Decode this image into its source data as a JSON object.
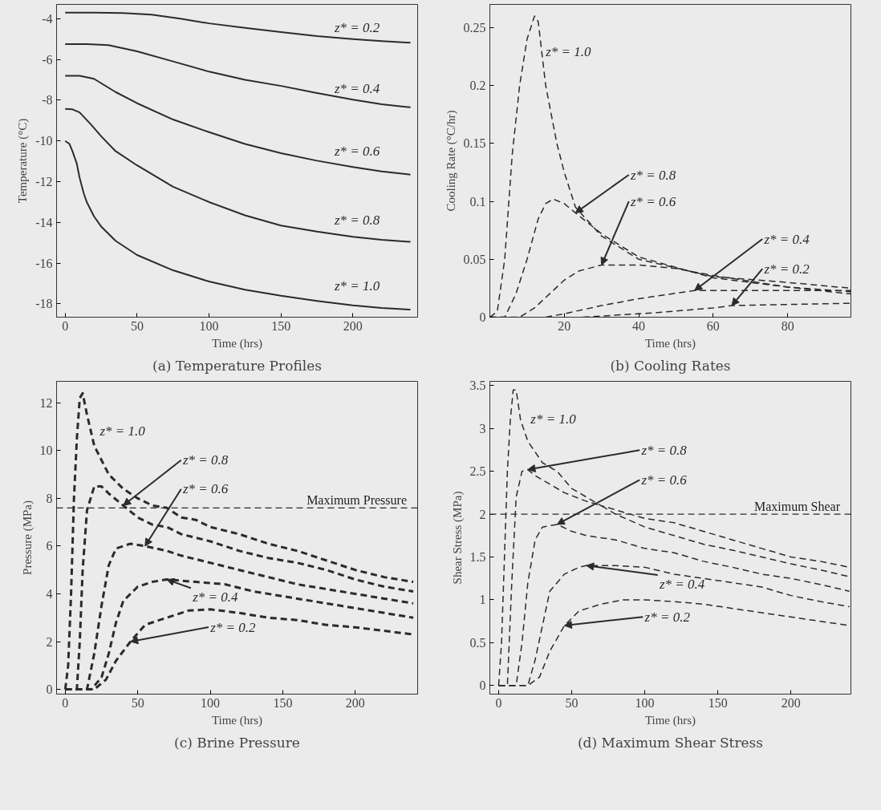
{
  "chart_data": [
    {
      "type": "line",
      "title": "(a) Temperature Profiles",
      "xlabel": "Time (hrs)",
      "ylabel": "Temperature (°C)",
      "xlim": [
        -6,
        245
      ],
      "ylim": [
        -18.65,
        -3.3
      ],
      "xticks": [
        0,
        50,
        100,
        150,
        200
      ],
      "yticks": [
        -18,
        -16,
        -14,
        -12,
        -10,
        -8,
        -6,
        -4
      ],
      "line_style": "solid",
      "grid": false,
      "series": [
        {
          "name": "z* = 0.2",
          "color": "#2b2b2b",
          "x": [
            0,
            20,
            40,
            60,
            80,
            100,
            125,
            150,
            175,
            200,
            220,
            240
          ],
          "values": [
            -3.7,
            -3.7,
            -3.72,
            -3.8,
            -4.0,
            -4.23,
            -4.45,
            -4.66,
            -4.85,
            -5.0,
            -5.1,
            -5.18
          ]
        },
        {
          "name": "z* = 0.4",
          "color": "#2b2b2b",
          "x": [
            0,
            15,
            30,
            50,
            75,
            100,
            125,
            150,
            175,
            200,
            220,
            240
          ],
          "values": [
            -5.25,
            -5.25,
            -5.3,
            -5.6,
            -6.1,
            -6.6,
            -7.0,
            -7.3,
            -7.65,
            -7.97,
            -8.2,
            -8.35
          ]
        },
        {
          "name": "z* = 0.6",
          "color": "#2b2b2b",
          "x": [
            0,
            10,
            20,
            35,
            50,
            75,
            100,
            125,
            150,
            175,
            200,
            220,
            240
          ],
          "values": [
            -6.8,
            -6.8,
            -6.95,
            -7.6,
            -8.15,
            -8.95,
            -9.57,
            -10.15,
            -10.6,
            -10.97,
            -11.28,
            -11.5,
            -11.65
          ]
        },
        {
          "name": "z* = 0.8",
          "color": "#2b2b2b",
          "x": [
            0,
            5,
            10,
            18,
            25,
            35,
            50,
            75,
            100,
            125,
            150,
            175,
            200,
            220,
            240
          ],
          "values": [
            -8.43,
            -8.45,
            -8.6,
            -9.2,
            -9.77,
            -10.5,
            -11.2,
            -12.25,
            -13.0,
            -13.65,
            -14.15,
            -14.45,
            -14.7,
            -14.85,
            -14.95
          ]
        },
        {
          "name": "z* = 1.0",
          "color": "#2b2b2b",
          "x": [
            0,
            3,
            5,
            8,
            10,
            13,
            15,
            20,
            25,
            35,
            50,
            75,
            100,
            125,
            150,
            175,
            200,
            220,
            240
          ],
          "values": [
            -10.0,
            -10.15,
            -10.5,
            -11.1,
            -11.8,
            -12.6,
            -13.0,
            -13.7,
            -14.2,
            -14.9,
            -15.6,
            -16.35,
            -16.9,
            -17.3,
            -17.6,
            -17.85,
            -18.07,
            -18.2,
            -18.28
          ]
        }
      ]
    },
    {
      "type": "line",
      "title": "(b) Cooling Rates",
      "xlabel": "Time (hrs)",
      "ylabel": "Cooling Rate (°C/hr)",
      "xlim": [
        0,
        97
      ],
      "ylim": [
        0,
        0.27
      ],
      "xticks": [
        20,
        40,
        60,
        80
      ],
      "yticks": [
        0,
        0.05,
        0.1,
        0.15,
        0.2,
        0.25
      ],
      "line_style": "dashed",
      "grid": false,
      "series": [
        {
          "name": "z* = 1.0",
          "color": "#2b2b2b",
          "x": [
            0,
            2,
            4,
            6,
            8,
            10,
            12,
            13,
            15,
            18,
            20,
            23,
            30,
            40,
            60,
            80,
            97
          ],
          "values": [
            0,
            0.005,
            0.05,
            0.14,
            0.2,
            0.24,
            0.26,
            0.255,
            0.2,
            0.15,
            0.125,
            0.095,
            0.07,
            0.05,
            0.035,
            0.03,
            0.025
          ]
        },
        {
          "name": "z* = 0.8",
          "color": "#2b2b2b",
          "x": [
            0,
            4,
            7,
            10,
            13,
            15,
            17,
            20,
            23,
            30,
            40,
            60,
            80,
            97
          ],
          "values": [
            0,
            0,
            0.02,
            0.05,
            0.085,
            0.098,
            0.102,
            0.098,
            0.09,
            0.072,
            0.052,
            0.034,
            0.026,
            0.022
          ]
        },
        {
          "name": "z* = 0.6",
          "color": "#2b2b2b",
          "x": [
            0,
            8,
            12,
            16,
            20,
            24,
            30,
            40,
            50,
            60,
            80,
            97
          ],
          "values": [
            0,
            0,
            0.008,
            0.02,
            0.032,
            0.04,
            0.045,
            0.045,
            0.042,
            0.036,
            0.026,
            0.02
          ]
        },
        {
          "name": "z* = 0.4",
          "color": "#2b2b2b",
          "x": [
            15,
            20,
            30,
            40,
            55,
            70,
            97
          ],
          "values": [
            0,
            0.003,
            0.01,
            0.016,
            0.023,
            0.023,
            0.023
          ]
        },
        {
          "name": "z* = 0.2",
          "color": "#2b2b2b",
          "x": [
            25,
            30,
            45,
            60,
            65,
            80,
            97
          ],
          "values": [
            0,
            0.001,
            0.004,
            0.008,
            0.01,
            0.011,
            0.012
          ]
        }
      ]
    },
    {
      "type": "line",
      "title": "(c) Brine Pressure",
      "xlabel": "Time (hrs)",
      "ylabel": "Pressure (MPa)",
      "xlim": [
        -6,
        243
      ],
      "ylim": [
        -0.2,
        12.9
      ],
      "xticks": [
        0,
        50,
        100,
        150,
        200
      ],
      "yticks": [
        0,
        2,
        4,
        6,
        8,
        10,
        12
      ],
      "line_style": "dashed",
      "grid": false,
      "ref_lines": [
        {
          "axis": "y",
          "value": 7.6,
          "label": "Maximum Pressure",
          "color": "#2b2b2b",
          "line_style": "dashed"
        }
      ],
      "series": [
        {
          "name": "z* = 1.0",
          "color": "#2b2b2b",
          "x": [
            0,
            2,
            4,
            6,
            8,
            10,
            12,
            15,
            20,
            30,
            40,
            50,
            60,
            70,
            80,
            90,
            100,
            120,
            140,
            160,
            180,
            200,
            220,
            240
          ],
          "values": [
            0,
            1,
            4,
            8,
            10.5,
            12.2,
            12.4,
            11.5,
            10.2,
            9,
            8.4,
            8,
            7.7,
            7.6,
            7.2,
            7.1,
            6.8,
            6.5,
            6.1,
            5.8,
            5.4,
            5.0,
            4.7,
            4.5
          ]
        },
        {
          "name": "z* = 0.8",
          "color": "#2b2b2b",
          "x": [
            0,
            8,
            10,
            12,
            15,
            20,
            25,
            30,
            40,
            50,
            60,
            70,
            80,
            100,
            120,
            140,
            160,
            180,
            200,
            220,
            240
          ],
          "values": [
            0,
            0,
            2,
            5,
            7.5,
            8.5,
            8.5,
            8.2,
            7.7,
            7.2,
            6.9,
            6.8,
            6.5,
            6.2,
            5.8,
            5.5,
            5.3,
            5.0,
            4.6,
            4.3,
            4.1
          ]
        },
        {
          "name": "z* = 0.6",
          "color": "#2b2b2b",
          "x": [
            0,
            15,
            20,
            25,
            30,
            35,
            45,
            55,
            70,
            80,
            100,
            120,
            140,
            160,
            180,
            200,
            220,
            240
          ],
          "values": [
            0,
            0,
            1.5,
            3.5,
            5.2,
            5.9,
            6.1,
            6.0,
            5.8,
            5.6,
            5.3,
            5.0,
            4.7,
            4.4,
            4.2,
            4.0,
            3.8,
            3.6
          ]
        },
        {
          "name": "z* = 0.4",
          "color": "#2b2b2b",
          "x": [
            0,
            18,
            25,
            30,
            35,
            40,
            50,
            60,
            70,
            90,
            110,
            130,
            150,
            170,
            190,
            210,
            240
          ],
          "values": [
            0,
            0,
            0.5,
            1.5,
            2.8,
            3.7,
            4.3,
            4.5,
            4.6,
            4.5,
            4.4,
            4.1,
            3.9,
            3.7,
            3.5,
            3.3,
            3.0
          ]
        },
        {
          "name": "z* = 0.2",
          "color": "#2b2b2b",
          "x": [
            0,
            20,
            28,
            35,
            45,
            55,
            70,
            85,
            100,
            120,
            140,
            160,
            180,
            200,
            220,
            240
          ],
          "values": [
            0,
            0,
            0.4,
            1.2,
            2.0,
            2.7,
            3.0,
            3.3,
            3.35,
            3.2,
            3.0,
            2.9,
            2.7,
            2.6,
            2.45,
            2.3
          ]
        }
      ]
    },
    {
      "type": "line",
      "title": "(d) Maximum Shear Stress",
      "xlabel": "Time (hrs)",
      "ylabel": "Shear Stress (MPa)",
      "xlim": [
        -6,
        241
      ],
      "ylim": [
        -0.1,
        3.55
      ],
      "xticks": [
        0,
        50,
        100,
        150,
        200
      ],
      "yticks": [
        0,
        0.5,
        1,
        1.5,
        2,
        2.5,
        3,
        3.5
      ],
      "line_style": "dashed",
      "grid": false,
      "ref_lines": [
        {
          "axis": "y",
          "value": 2,
          "label": "Maximum Shear",
          "color": "#2b2b2b",
          "line_style": "dashed"
        }
      ],
      "series": [
        {
          "name": "z* = 1.0",
          "color": "#2b2b2b",
          "x": [
            0,
            2,
            4,
            6,
            8,
            10,
            12,
            15,
            20,
            30,
            40,
            50,
            60,
            70,
            80,
            100,
            120,
            140,
            160,
            180,
            200,
            220,
            240
          ],
          "values": [
            0,
            0.5,
            1.5,
            2.5,
            3.1,
            3.45,
            3.45,
            3.1,
            2.85,
            2.6,
            2.5,
            2.3,
            2.2,
            2.1,
            2.05,
            1.95,
            1.9,
            1.8,
            1.7,
            1.6,
            1.5,
            1.45,
            1.38
          ]
        },
        {
          "name": "z* = 0.8",
          "color": "#2b2b2b",
          "x": [
            0,
            6,
            9,
            12,
            16,
            20,
            25,
            35,
            45,
            60,
            70,
            80,
            100,
            120,
            140,
            160,
            180,
            200,
            220,
            240
          ],
          "values": [
            0,
            0,
            1.2,
            2.2,
            2.5,
            2.52,
            2.45,
            2.35,
            2.25,
            2.15,
            2.1,
            2.0,
            1.85,
            1.75,
            1.65,
            1.58,
            1.5,
            1.42,
            1.35,
            1.27
          ]
        },
        {
          "name": "z* = 0.6",
          "color": "#2b2b2b",
          "x": [
            0,
            12,
            16,
            20,
            25,
            30,
            40,
            50,
            60,
            80,
            100,
            120,
            140,
            160,
            180,
            200,
            220,
            240
          ],
          "values": [
            0,
            0,
            0.5,
            1.2,
            1.7,
            1.85,
            1.88,
            1.8,
            1.75,
            1.7,
            1.6,
            1.55,
            1.45,
            1.38,
            1.3,
            1.25,
            1.18,
            1.1
          ]
        },
        {
          "name": "z* = 0.4",
          "color": "#2b2b2b",
          "x": [
            0,
            20,
            25,
            30,
            35,
            45,
            55,
            60,
            80,
            100,
            120,
            140,
            160,
            180,
            200,
            220,
            240
          ],
          "values": [
            0,
            0,
            0.3,
            0.7,
            1.1,
            1.3,
            1.38,
            1.4,
            1.4,
            1.38,
            1.3,
            1.25,
            1.2,
            1.15,
            1.05,
            0.98,
            0.92
          ]
        },
        {
          "name": "z* = 0.2",
          "color": "#2b2b2b",
          "x": [
            0,
            20,
            28,
            35,
            45,
            55,
            70,
            85,
            100,
            120,
            140,
            160,
            180,
            200,
            220,
            240
          ],
          "values": [
            0,
            0,
            0.1,
            0.4,
            0.7,
            0.87,
            0.95,
            1.0,
            1.0,
            0.98,
            0.95,
            0.9,
            0.85,
            0.8,
            0.75,
            0.7
          ]
        }
      ]
    }
  ]
}
